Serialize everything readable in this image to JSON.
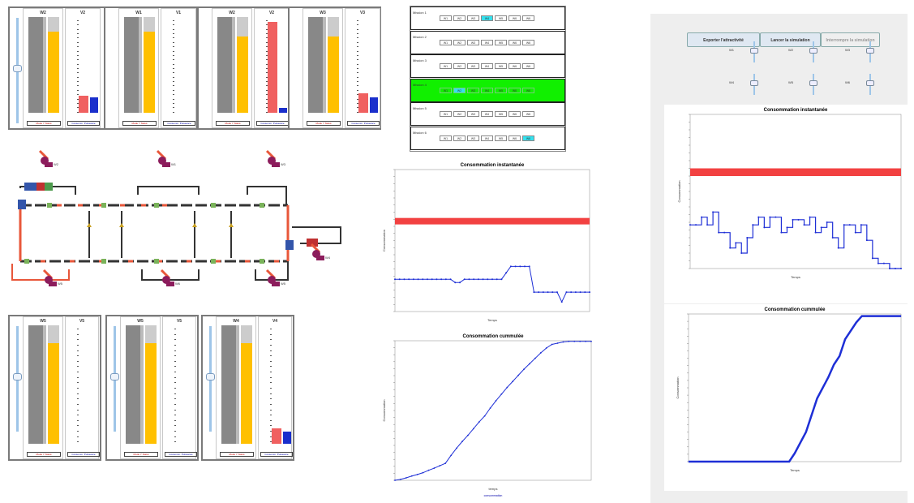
{
  "robot_panels_top": [
    {
      "robot": "W2",
      "power": "V2",
      "legend_left": "Mode Y Statut",
      "legend_right": "Consomm. Puissance",
      "bar_level": 0.85,
      "red_level": 0.18,
      "blue_level": 0.16
    },
    {
      "robot": "W1",
      "power": "V1",
      "legend_left": "Mode Y Statut",
      "legend_right": "Consomm. Puissance",
      "bar_level": 0.85,
      "red_level": 0.0,
      "blue_level": 0.0
    },
    {
      "robot": "W2",
      "power": "V2",
      "legend_left": "Mode Y Statut",
      "legend_right": "Consomm. Puissance",
      "bar_level": 0.8,
      "red_level": 0.95,
      "blue_level": 0.05
    },
    {
      "robot": "W3",
      "power": "V3",
      "legend_left": "Mode Y Statut",
      "legend_right": "Consomm. Puissance",
      "bar_level": 0.8,
      "red_level": 0.2,
      "blue_level": 0.16
    }
  ],
  "robot_panels_bottom": [
    {
      "robot": "W5",
      "power": "V5",
      "legend_left": "Mode Y Statut",
      "legend_right": "Consomm. Puissance",
      "bar_level": 0.85,
      "red_level": 0.0,
      "blue_level": 0.0
    },
    {
      "robot": "W5",
      "power": "V5",
      "legend_left": "Mode Y Statut",
      "legend_right": "Consomm. Puissance",
      "bar_level": 0.85,
      "red_level": 0.0,
      "blue_level": 0.0
    },
    {
      "robot": "W4",
      "power": "V4",
      "legend_left": "Mode Y Statut",
      "legend_right": "Consomm. Puissance",
      "bar_level": 0.85,
      "red_level": 0.13,
      "blue_level": 0.1
    }
  ],
  "plant_labels": [
    "W2",
    "W1",
    "W3",
    "W4",
    "W5",
    "W6"
  ],
  "missions": [
    {
      "label": "Mission 1",
      "cells": [
        "W1",
        "W2",
        "W3",
        "W4",
        "W5",
        "W6",
        "W6"
      ],
      "active": 3,
      "highlight": false
    },
    {
      "label": "Mission 2",
      "cells": [
        "W1",
        "W2",
        "W3",
        "W4",
        "W5",
        "W6",
        "W6"
      ],
      "active": -1,
      "highlight": false
    },
    {
      "label": "Mission 3",
      "cells": [
        "W1",
        "W2",
        "W3",
        "W4",
        "W5",
        "W6",
        "W6"
      ],
      "active": -1,
      "highlight": false
    },
    {
      "label": "Mission 4",
      "cells": [
        "W1",
        "W2",
        "W3",
        "W4",
        "W5",
        "W6",
        "W6"
      ],
      "active": 1,
      "highlight": true
    },
    {
      "label": "Mission 5",
      "cells": [
        "W1",
        "W2",
        "W3",
        "W4",
        "W5",
        "W6",
        "W6"
      ],
      "active": -1,
      "highlight": false
    },
    {
      "label": "Mission 6",
      "cells": [
        "W1",
        "W2",
        "W3",
        "W4",
        "W5",
        "W6",
        "W6"
      ],
      "active": 6,
      "highlight": false
    }
  ],
  "buttons": {
    "export": "Exporter l'attractivité",
    "launch": "Lancer la simulation",
    "stop": "Interrompre la simulation"
  },
  "right_sliders": {
    "labels": [
      "W1",
      "W2",
      "W3",
      "W4",
      "W5",
      "W6"
    ]
  },
  "colors": {
    "accent_red": "#f24141",
    "series_blue": "#1e2fd6",
    "mission_green": "#11f000",
    "active_cell": "#34e1ee",
    "robot_purple": "#8c1c5c",
    "conveyor_red": "#e8573a"
  },
  "chart_data": [
    {
      "type": "line",
      "title": "Consommation instantanée",
      "xlabel": "Temps",
      "ylabel": "Consommation",
      "ylim": [
        0,
        44
      ],
      "threshold_band": [
        27,
        29
      ],
      "x": [
        0,
        1,
        2,
        3,
        4,
        5,
        6,
        7,
        8,
        9,
        10,
        11,
        12,
        13,
        14,
        15,
        16,
        17,
        18,
        19,
        20,
        21,
        22,
        23,
        24,
        25,
        26,
        27,
        28,
        29,
        30,
        31,
        32,
        33,
        34,
        35,
        36,
        37,
        38,
        39,
        40,
        41,
        42
      ],
      "series": [
        {
          "values": [
            10,
            10,
            10,
            10,
            10,
            10,
            10,
            10,
            10,
            10,
            10,
            10,
            10,
            9,
            9,
            10,
            10,
            10,
            10,
            10,
            10,
            10,
            10,
            10,
            12,
            14,
            14,
            14,
            14,
            14,
            6,
            6,
            6,
            6,
            6,
            6,
            3,
            6,
            6,
            6,
            6,
            6,
            6
          ]
        }
      ]
    },
    {
      "type": "line",
      "title": "Consommation cummulée",
      "xlabel": "temps",
      "ylabel": "Consommation",
      "ylim": [
        0,
        460
      ],
      "x": [
        0,
        5,
        10,
        15,
        20,
        25,
        30,
        35,
        40,
        45,
        50,
        55,
        60,
        65,
        70,
        75,
        80,
        85,
        90,
        95,
        100,
        105,
        110,
        115,
        120,
        125,
        130,
        135,
        140,
        145,
        150,
        155,
        160,
        165,
        170,
        175
      ],
      "series": [
        {
          "name": "consommation",
          "values": [
            0,
            3,
            8,
            14,
            19,
            25,
            33,
            40,
            48,
            56,
            82,
            106,
            128,
            148,
            170,
            192,
            212,
            238,
            262,
            284,
            306,
            326,
            346,
            366,
            384,
            402,
            420,
            436,
            448,
            452,
            456,
            458,
            458,
            458,
            458,
            458
          ]
        }
      ]
    },
    {
      "type": "line",
      "title": "Consommation instantanée",
      "xlabel": "Temps",
      "ylabel": "Consommation",
      "ylim": [
        0,
        60
      ],
      "threshold_band": [
        36,
        39
      ],
      "x": [
        0,
        1,
        2,
        3,
        4,
        5,
        6,
        7,
        8,
        9,
        10,
        11,
        12,
        13,
        14,
        15,
        16,
        17,
        18,
        19,
        20,
        21,
        22,
        23,
        24,
        25,
        26,
        27,
        28,
        29,
        30,
        31,
        32,
        33,
        34,
        35,
        36,
        37
      ],
      "series": [
        {
          "values": [
            17,
            17,
            20,
            17,
            22,
            14,
            14,
            8,
            10,
            6,
            12,
            17,
            20,
            16,
            20,
            20,
            14,
            16,
            19,
            19,
            17,
            20,
            14,
            16,
            18,
            12,
            8,
            17,
            17,
            14,
            17,
            11,
            4,
            2,
            2,
            0,
            0,
            0
          ]
        }
      ]
    },
    {
      "type": "line",
      "title": "Consommation cummulée",
      "xlabel": "Temps",
      "ylabel": "Consommation",
      "ylim": [
        0,
        350
      ],
      "x": [
        0,
        10,
        20,
        30,
        40,
        50,
        60,
        70,
        80,
        90,
        95,
        100,
        105,
        110,
        115,
        120,
        125,
        130,
        135,
        140,
        145,
        150,
        155,
        160,
        165,
        170,
        180,
        190
      ],
      "series": [
        {
          "values": [
            0,
            0,
            0,
            0,
            0,
            0,
            0,
            0,
            0,
            0,
            20,
            45,
            70,
            110,
            150,
            175,
            200,
            230,
            250,
            290,
            310,
            330,
            345,
            345,
            345,
            345,
            345,
            345
          ]
        }
      ]
    }
  ]
}
